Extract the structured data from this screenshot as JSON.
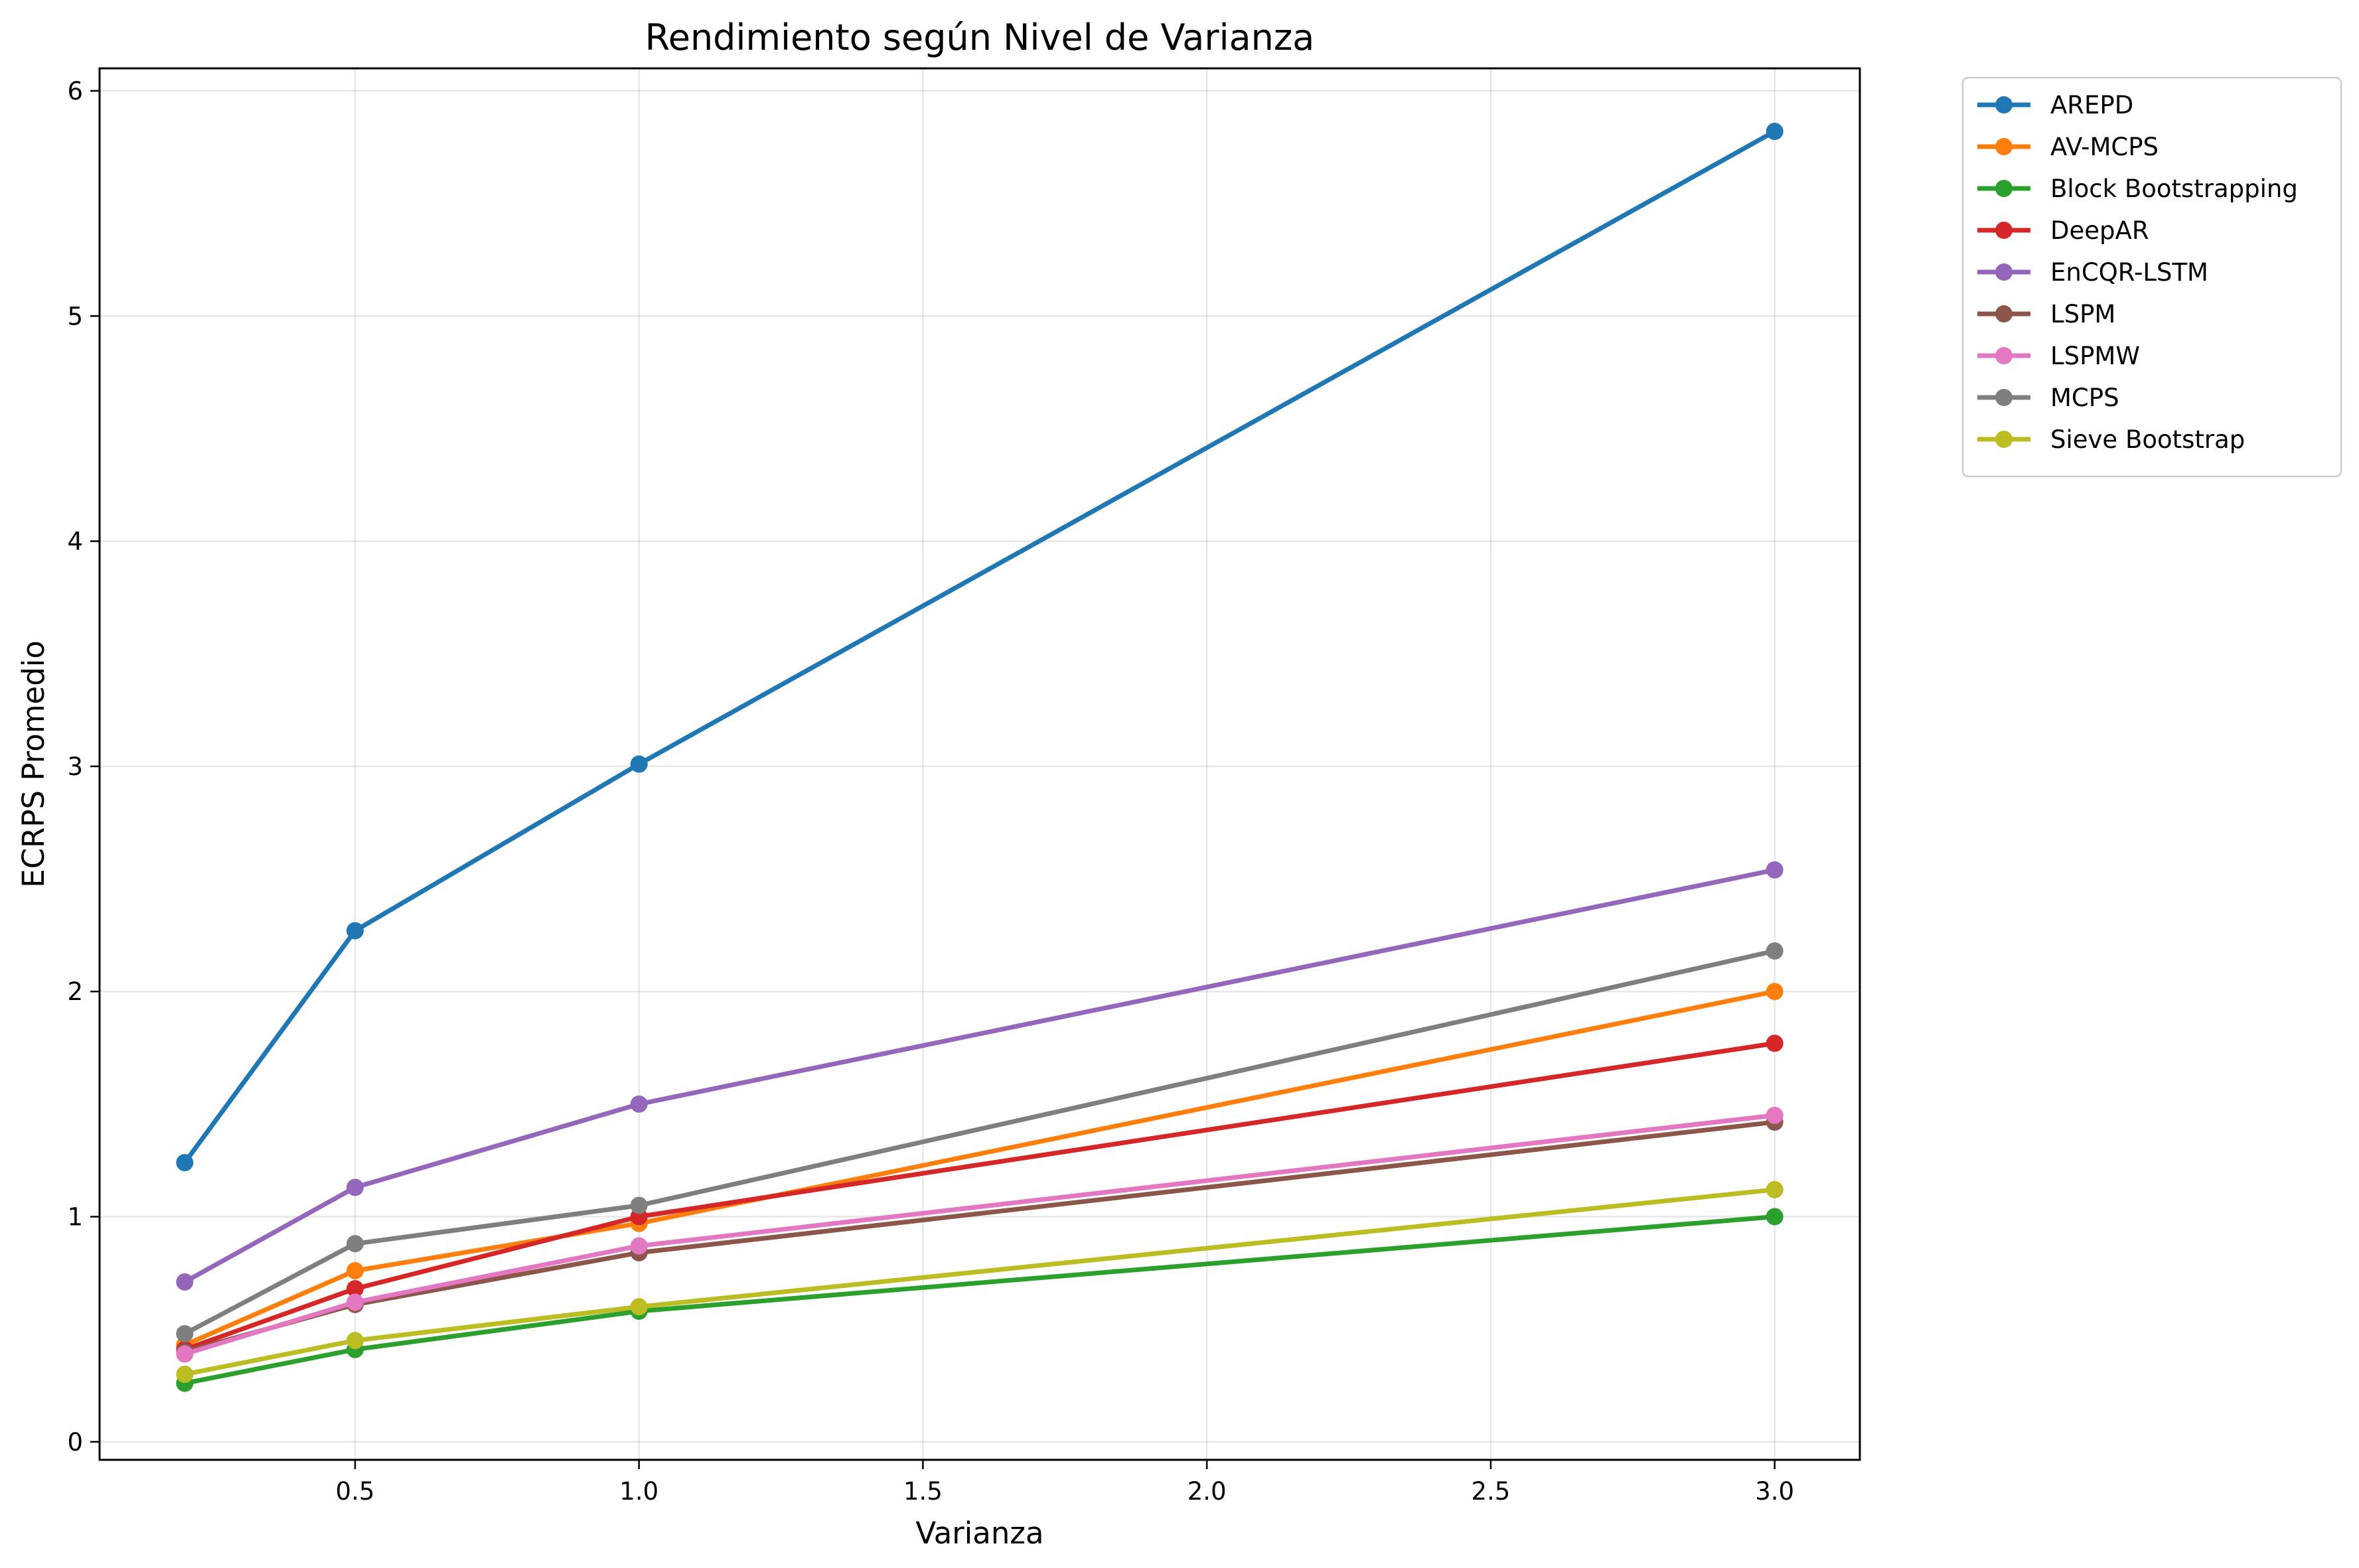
{
  "chart_data": {
    "type": "line",
    "title": "Rendimiento según Nivel de Varianza",
    "xlabel": "Varianza",
    "ylabel": "ECRPS Promedio",
    "xlim": [
      0.05,
      3.15
    ],
    "ylim": [
      -0.08,
      6.1
    ],
    "xticks": [
      0.5,
      1.0,
      1.5,
      2.0,
      2.5,
      3.0
    ],
    "xtick_labels": [
      "0.5",
      "1.0",
      "1.5",
      "2.0",
      "2.5",
      "3.0"
    ],
    "yticks": [
      0,
      1,
      2,
      3,
      4,
      5,
      6
    ],
    "ytick_labels": [
      "0",
      "1",
      "2",
      "3",
      "4",
      "5",
      "6"
    ],
    "grid": true,
    "legend_position": "outside-upper-right",
    "x": [
      0.2,
      0.5,
      1.0,
      3.0
    ],
    "series": [
      {
        "name": "AREPD",
        "color": "#1f77b4",
        "values": [
          1.24,
          2.27,
          3.01,
          5.82
        ]
      },
      {
        "name": "AV-MCPS",
        "color": "#ff7f0e",
        "values": [
          0.43,
          0.76,
          0.97,
          2.0
        ]
      },
      {
        "name": "Block Bootstrapping",
        "color": "#2ca02c",
        "values": [
          0.26,
          0.41,
          0.58,
          1.0
        ]
      },
      {
        "name": "DeepAR",
        "color": "#d62728",
        "values": [
          0.41,
          0.68,
          1.0,
          1.77
        ]
      },
      {
        "name": "EnCQR-LSTM",
        "color": "#9467bd",
        "values": [
          0.71,
          1.13,
          1.5,
          2.54
        ]
      },
      {
        "name": "LSPM",
        "color": "#8c564b",
        "values": [
          0.4,
          0.61,
          0.84,
          1.42
        ]
      },
      {
        "name": "LSPMW",
        "color": "#e377c2",
        "values": [
          0.39,
          0.62,
          0.87,
          1.45
        ]
      },
      {
        "name": "MCPS",
        "color": "#7f7f7f",
        "values": [
          0.48,
          0.88,
          1.05,
          2.18
        ]
      },
      {
        "name": "Sieve Bootstrap",
        "color": "#bcbd22",
        "values": [
          0.3,
          0.45,
          0.6,
          1.12
        ]
      }
    ]
  }
}
